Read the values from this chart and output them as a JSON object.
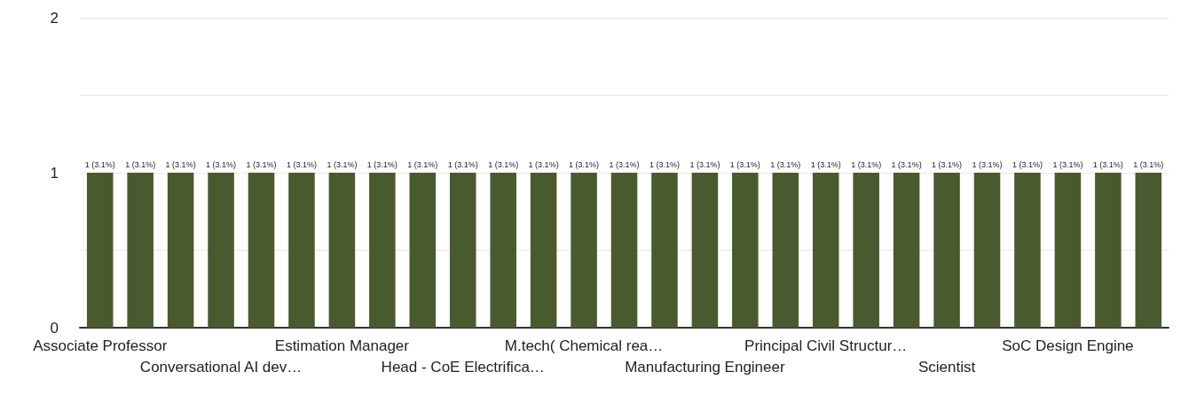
{
  "chart_data": {
    "type": "bar",
    "categories": [
      "Associate Professor",
      null,
      null,
      "Conversational AI dev…",
      null,
      null,
      "Estimation Manager",
      null,
      null,
      "Head - CoE Electrifica…",
      null,
      null,
      "M.tech( Chemical rea…",
      null,
      null,
      "Manufacturing Engineer",
      null,
      null,
      "Principal Civil Structur…",
      null,
      null,
      "Scientist",
      null,
      null,
      "SoC Design Engine",
      null,
      null
    ],
    "values": [
      1,
      1,
      1,
      1,
      1,
      1,
      1,
      1,
      1,
      1,
      1,
      1,
      1,
      1,
      1,
      1,
      1,
      1,
      1,
      1,
      1,
      1,
      1,
      1,
      1,
      1,
      1
    ],
    "value_labels": [
      "1 (3.1%)",
      "1 (3.1%)",
      "1 (3.1%)",
      "1 (3.1%)",
      "1 (3.1%)",
      "1 (3.1%)",
      "1 (3.1%)",
      "1 (3.1%)",
      "1 (3.1%)",
      "1 (3.1%)",
      "1 (3.1%)",
      "1 (3.1%)",
      "1 (3.1%)",
      "1 (3.1%)",
      "1 (3.1%)",
      "1 (3.1%)",
      "1 (3.1%)",
      "1 (3.1%)",
      "1 (3.1%)",
      "1 (3.1%)",
      "1 (3.1%)",
      "1 (3.1%)",
      "1 (3.1%)",
      "1 (3.1%)",
      "1 (3.1%)",
      "1 (3.1%)",
      "1 (3.1%)"
    ],
    "color": "#4a5a2f",
    "ylim": [
      0,
      2
    ],
    "yticks": [
      0,
      {
        "value": 0.5,
        "label": null
      },
      1,
      {
        "value": 1.5,
        "label": null
      },
      2
    ],
    "grid": true
  }
}
